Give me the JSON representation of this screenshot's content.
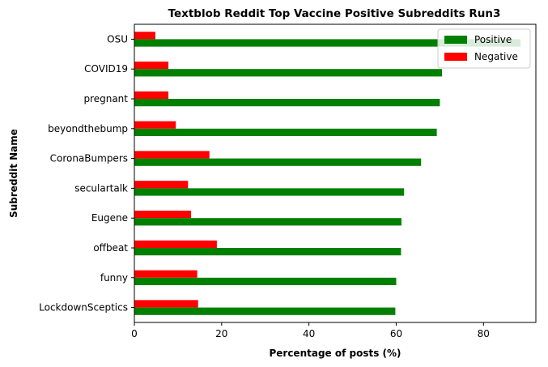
{
  "chart_data": {
    "type": "bar",
    "orientation": "horizontal",
    "title": "Textblob Reddit Top Vaccine Positive Subreddits Run3",
    "xlabel": "Percentage of posts (%)",
    "ylabel": "Subreddit Name",
    "xlim": [
      0,
      92
    ],
    "xticks": [
      0,
      20,
      40,
      60,
      80
    ],
    "grid": false,
    "legend_position": "top-right",
    "categories": [
      "OSU",
      "COVID19",
      "pregnant",
      "beyondthebump",
      "CoronaBumpers",
      "seculartalk",
      "Eugene",
      "offbeat",
      "funny",
      "LockdownSceptics"
    ],
    "series": [
      {
        "name": "Positive",
        "color": "#008000",
        "values": [
          88.5,
          70.5,
          70.0,
          69.3,
          65.7,
          61.8,
          61.2,
          61.1,
          60.0,
          59.8
        ]
      },
      {
        "name": "Negative",
        "color": "#ff0000",
        "values": [
          4.8,
          7.8,
          7.8,
          9.5,
          17.2,
          12.3,
          13.0,
          18.9,
          14.4,
          14.6
        ]
      }
    ]
  }
}
